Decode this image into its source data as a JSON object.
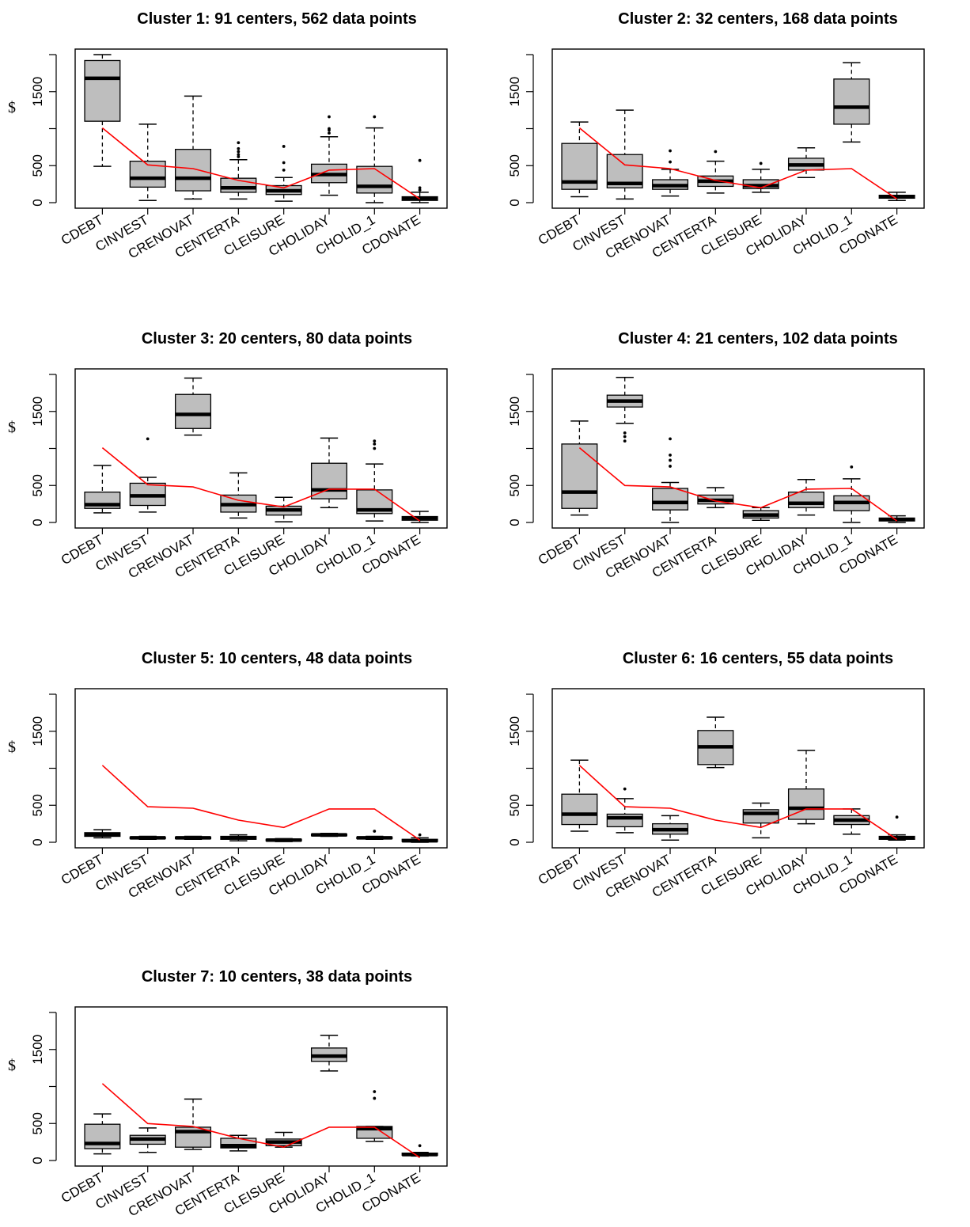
{
  "figure": {
    "ylabel": "$"
  },
  "chart_data": [
    {
      "type": "box",
      "title": "Cluster 1: 91 centers, 562 data points",
      "xlabel": "",
      "ylabel": "$",
      "ylim": [
        0,
        2000
      ],
      "yticks": [
        0,
        500,
        1500
      ],
      "categories": [
        "CDEBT",
        "CINVEST",
        "CRENOVAT",
        "CENTERTA",
        "CLEISURE",
        "CHOLIDAY",
        "CHOLID_1",
        "CDONATE"
      ],
      "boxes": [
        {
          "lo": 490,
          "q1": 1100,
          "med": 1680,
          "q3": 1920,
          "hi": 2000,
          "outliers": []
        },
        {
          "lo": 30,
          "q1": 210,
          "med": 330,
          "q3": 560,
          "hi": 1060,
          "outliers": []
        },
        {
          "lo": 50,
          "q1": 160,
          "med": 330,
          "q3": 720,
          "hi": 1440,
          "outliers": []
        },
        {
          "lo": 50,
          "q1": 140,
          "med": 200,
          "q3": 330,
          "hi": 580,
          "outliers": [
            620,
            650,
            690,
            730,
            810
          ]
        },
        {
          "lo": 20,
          "q1": 110,
          "med": 160,
          "q3": 230,
          "hi": 340,
          "outliers": [
            440,
            540,
            760
          ]
        },
        {
          "lo": 100,
          "q1": 270,
          "med": 380,
          "q3": 520,
          "hi": 890,
          "outliers": [
            940,
            980,
            1000,
            1160
          ]
        },
        {
          "lo": 0,
          "q1": 130,
          "med": 220,
          "q3": 490,
          "hi": 1010,
          "outliers": [
            1160
          ]
        },
        {
          "lo": 0,
          "q1": 30,
          "med": 60,
          "q3": 80,
          "hi": 140,
          "outliers": [
            170,
            200,
            570
          ]
        }
      ],
      "overall_line": [
        1010,
        510,
        460,
        300,
        200,
        440,
        460,
        50
      ]
    },
    {
      "type": "box",
      "title": "Cluster 2: 32 centers, 168 data points",
      "xlabel": "",
      "ylabel": "",
      "ylim": [
        0,
        2000
      ],
      "yticks": [
        0,
        500,
        1500
      ],
      "categories": [
        "CDEBT",
        "CINVEST",
        "CRENOVAT",
        "CENTERTA",
        "CLEISURE",
        "CHOLIDAY",
        "CHOLID_1",
        "CDONATE"
      ],
      "boxes": [
        {
          "lo": 80,
          "q1": 180,
          "med": 280,
          "q3": 800,
          "hi": 1090,
          "outliers": []
        },
        {
          "lo": 50,
          "q1": 200,
          "med": 260,
          "q3": 650,
          "hi": 1250,
          "outliers": []
        },
        {
          "lo": 90,
          "q1": 180,
          "med": 230,
          "q3": 310,
          "hi": 450,
          "outliers": [
            550,
            700
          ]
        },
        {
          "lo": 130,
          "q1": 220,
          "med": 290,
          "q3": 360,
          "hi": 560,
          "outliers": [
            690
          ]
        },
        {
          "lo": 140,
          "q1": 190,
          "med": 230,
          "q3": 310,
          "hi": 450,
          "outliers": [
            530
          ]
        },
        {
          "lo": 340,
          "q1": 440,
          "med": 510,
          "q3": 600,
          "hi": 740,
          "outliers": []
        },
        {
          "lo": 820,
          "q1": 1060,
          "med": 1290,
          "q3": 1670,
          "hi": 1890,
          "outliers": []
        },
        {
          "lo": 30,
          "q1": 60,
          "med": 80,
          "q3": 100,
          "hi": 140,
          "outliers": []
        }
      ],
      "overall_line": [
        1010,
        510,
        460,
        300,
        200,
        440,
        460,
        50
      ]
    },
    {
      "type": "box",
      "title": "Cluster 3: 20 centers, 80 data points",
      "xlabel": "",
      "ylabel": "$",
      "ylim": [
        0,
        2000
      ],
      "yticks": [
        0,
        500,
        1500
      ],
      "categories": [
        "CDEBT",
        "CINVEST",
        "CRENOVAT",
        "CENTERTA",
        "CLEISURE",
        "CHOLIDAY",
        "CHOLID_1",
        "CDONATE"
      ],
      "boxes": [
        {
          "lo": 130,
          "q1": 190,
          "med": 240,
          "q3": 410,
          "hi": 770,
          "outliers": []
        },
        {
          "lo": 140,
          "q1": 230,
          "med": 360,
          "q3": 530,
          "hi": 610,
          "outliers": [
            1130
          ]
        },
        {
          "lo": 1180,
          "q1": 1270,
          "med": 1460,
          "q3": 1730,
          "hi": 1950,
          "outliers": []
        },
        {
          "lo": 60,
          "q1": 140,
          "med": 240,
          "q3": 370,
          "hi": 670,
          "outliers": []
        },
        {
          "lo": 10,
          "q1": 100,
          "med": 170,
          "q3": 220,
          "hi": 340,
          "outliers": []
        },
        {
          "lo": 200,
          "q1": 320,
          "med": 440,
          "q3": 800,
          "hi": 1140,
          "outliers": []
        },
        {
          "lo": 20,
          "q1": 120,
          "med": 170,
          "q3": 440,
          "hi": 790,
          "outliers": [
            1000,
            1060,
            1100
          ]
        },
        {
          "lo": 0,
          "q1": 30,
          "med": 60,
          "q3": 80,
          "hi": 150,
          "outliers": []
        }
      ],
      "overall_line": [
        1010,
        510,
        480,
        300,
        210,
        450,
        450,
        20
      ]
    },
    {
      "type": "box",
      "title": "Cluster 4: 21 centers, 102 data points",
      "xlabel": "",
      "ylabel": "",
      "ylim": [
        0,
        2000
      ],
      "yticks": [
        0,
        500,
        1500
      ],
      "categories": [
        "CDEBT",
        "CINVEST",
        "CRENOVAT",
        "CENTERTA",
        "CLEISURE",
        "CHOLIDAY",
        "CHOLID_1",
        "CDONATE"
      ],
      "boxes": [
        {
          "lo": 100,
          "q1": 190,
          "med": 410,
          "q3": 1060,
          "hi": 1370,
          "outliers": []
        },
        {
          "lo": 1340,
          "q1": 1560,
          "med": 1640,
          "q3": 1720,
          "hi": 1960,
          "outliers": [
            1100,
            1160,
            1210
          ]
        },
        {
          "lo": 0,
          "q1": 170,
          "med": 270,
          "q3": 460,
          "hi": 540,
          "outliers": [
            760,
            840,
            910,
            1130
          ]
        },
        {
          "lo": 200,
          "q1": 250,
          "med": 300,
          "q3": 370,
          "hi": 470,
          "outliers": []
        },
        {
          "lo": 30,
          "q1": 60,
          "med": 100,
          "q3": 160,
          "hi": 200,
          "outliers": []
        },
        {
          "lo": 100,
          "q1": 200,
          "med": 260,
          "q3": 410,
          "hi": 580,
          "outliers": []
        },
        {
          "lo": 0,
          "q1": 160,
          "med": 270,
          "q3": 360,
          "hi": 590,
          "outliers": [
            750
          ]
        },
        {
          "lo": 0,
          "q1": 20,
          "med": 40,
          "q3": 60,
          "hi": 90,
          "outliers": []
        }
      ],
      "overall_line": [
        1010,
        500,
        480,
        290,
        200,
        450,
        460,
        20
      ]
    },
    {
      "type": "box",
      "title": "Cluster 5: 10 centers, 48 data points",
      "xlabel": "",
      "ylabel": "$",
      "ylim": [
        0,
        2000
      ],
      "yticks": [
        0,
        500,
        1500
      ],
      "categories": [
        "CDEBT",
        "CINVEST",
        "CRENOVAT",
        "CENTERTA",
        "CLEISURE",
        "CHOLIDAY",
        "CHOLID_1",
        "CDONATE"
      ],
      "boxes": [
        {
          "lo": 60,
          "q1": 80,
          "med": 110,
          "q3": 130,
          "hi": 170,
          "outliers": []
        },
        {
          "lo": 40,
          "q1": 50,
          "med": 60,
          "q3": 70,
          "hi": 80,
          "outliers": []
        },
        {
          "lo": 40,
          "q1": 50,
          "med": 60,
          "q3": 70,
          "hi": 80,
          "outliers": []
        },
        {
          "lo": 20,
          "q1": 40,
          "med": 60,
          "q3": 80,
          "hi": 100,
          "outliers": []
        },
        {
          "lo": 10,
          "q1": 20,
          "med": 30,
          "q3": 40,
          "hi": 50,
          "outliers": []
        },
        {
          "lo": 80,
          "q1": 90,
          "med": 100,
          "q3": 110,
          "hi": 120,
          "outliers": []
        },
        {
          "lo": 40,
          "q1": 50,
          "med": 60,
          "q3": 70,
          "hi": 80,
          "outliers": [
            150
          ]
        },
        {
          "lo": 0,
          "q1": 10,
          "med": 20,
          "q3": 40,
          "hi": 60,
          "outliers": [
            100
          ]
        }
      ],
      "overall_line": [
        1040,
        480,
        460,
        300,
        200,
        450,
        450,
        30
      ]
    },
    {
      "type": "box",
      "title": "Cluster 6: 16 centers, 55 data points",
      "xlabel": "",
      "ylabel": "",
      "ylim": [
        0,
        2000
      ],
      "yticks": [
        0,
        500,
        1500
      ],
      "categories": [
        "CDEBT",
        "CINVEST",
        "CRENOVAT",
        "CENTERTA",
        "CLEISURE",
        "CHOLIDAY",
        "CHOLID_1",
        "CDONATE"
      ],
      "boxes": [
        {
          "lo": 150,
          "q1": 240,
          "med": 380,
          "q3": 650,
          "hi": 1110,
          "outliers": []
        },
        {
          "lo": 130,
          "q1": 210,
          "med": 330,
          "q3": 380,
          "hi": 590,
          "outliers": [
            720
          ]
        },
        {
          "lo": 30,
          "q1": 110,
          "med": 170,
          "q3": 250,
          "hi": 360,
          "outliers": []
        },
        {
          "lo": 1010,
          "q1": 1050,
          "med": 1290,
          "q3": 1510,
          "hi": 1690,
          "outliers": []
        },
        {
          "lo": 60,
          "q1": 260,
          "med": 390,
          "q3": 440,
          "hi": 530,
          "outliers": []
        },
        {
          "lo": 250,
          "q1": 310,
          "med": 460,
          "q3": 720,
          "hi": 1240,
          "outliers": []
        },
        {
          "lo": 110,
          "q1": 240,
          "med": 300,
          "q3": 360,
          "hi": 450,
          "outliers": []
        },
        {
          "lo": 30,
          "q1": 40,
          "med": 60,
          "q3": 80,
          "hi": 100,
          "outliers": [
            340
          ]
        }
      ],
      "overall_line": [
        1040,
        480,
        460,
        300,
        200,
        450,
        450,
        40
      ]
    },
    {
      "type": "box",
      "title": "Cluster 7: 10 centers, 38 data points",
      "xlabel": "",
      "ylabel": "$",
      "ylim": [
        0,
        2000
      ],
      "yticks": [
        0,
        500,
        1500
      ],
      "categories": [
        "CDEBT",
        "CINVEST",
        "CRENOVAT",
        "CENTERTA",
        "CLEISURE",
        "CHOLIDAY",
        "CHOLID_1",
        "CDONATE"
      ],
      "boxes": [
        {
          "lo": 90,
          "q1": 160,
          "med": 230,
          "q3": 490,
          "hi": 630,
          "outliers": []
        },
        {
          "lo": 110,
          "q1": 220,
          "med": 290,
          "q3": 340,
          "hi": 440,
          "outliers": []
        },
        {
          "lo": 150,
          "q1": 180,
          "med": 390,
          "q3": 450,
          "hi": 830,
          "outliers": []
        },
        {
          "lo": 130,
          "q1": 170,
          "med": 200,
          "q3": 300,
          "hi": 340,
          "outliers": []
        },
        {
          "lo": 180,
          "q1": 200,
          "med": 250,
          "q3": 290,
          "hi": 380,
          "outliers": []
        },
        {
          "lo": 1210,
          "q1": 1340,
          "med": 1410,
          "q3": 1520,
          "hi": 1690,
          "outliers": []
        },
        {
          "lo": 260,
          "q1": 300,
          "med": 430,
          "q3": 460,
          "hi": 460,
          "outliers": [
            840,
            930
          ]
        },
        {
          "lo": 60,
          "q1": 70,
          "med": 80,
          "q3": 100,
          "hi": 110,
          "outliers": [
            200
          ]
        }
      ],
      "overall_line": [
        1040,
        500,
        460,
        300,
        180,
        450,
        450,
        40
      ]
    }
  ],
  "colors": {
    "box_fill": "#bebebe",
    "overall_line": "#ff0000",
    "axis": "#000000"
  }
}
